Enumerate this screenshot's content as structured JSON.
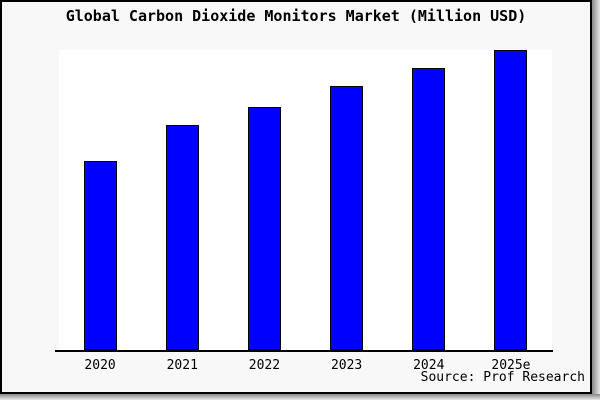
{
  "window": {
    "title": "Global Carbon Dioxide Monitors Market (Million USD)",
    "source_note": "Source: Prof Research"
  },
  "colors": {
    "window_background": "#f8f8f8",
    "plot_background": "#ffffff",
    "bar_fill": "#0000ff",
    "bar_border": "#000000",
    "axis_line": "#000000",
    "text": "#000000",
    "frame_border": "#000000",
    "shadow": "#888888"
  },
  "chart_data": {
    "type": "bar",
    "title": "Global Carbon Dioxide Monitors Market (Million USD)",
    "categories": [
      "2020",
      "2021",
      "2022",
      "2023",
      "2024",
      "2025e"
    ],
    "values": [
      63,
      75,
      81,
      88,
      94,
      100
    ],
    "values_note": "No y-axis or data labels shown; values estimated as percent of tallest bar height",
    "xlabel": "",
    "ylabel": "",
    "ylim": [
      0,
      100
    ],
    "grid": false,
    "legend": false,
    "y_axis_visible": false,
    "source": "Source: Prof Research"
  }
}
